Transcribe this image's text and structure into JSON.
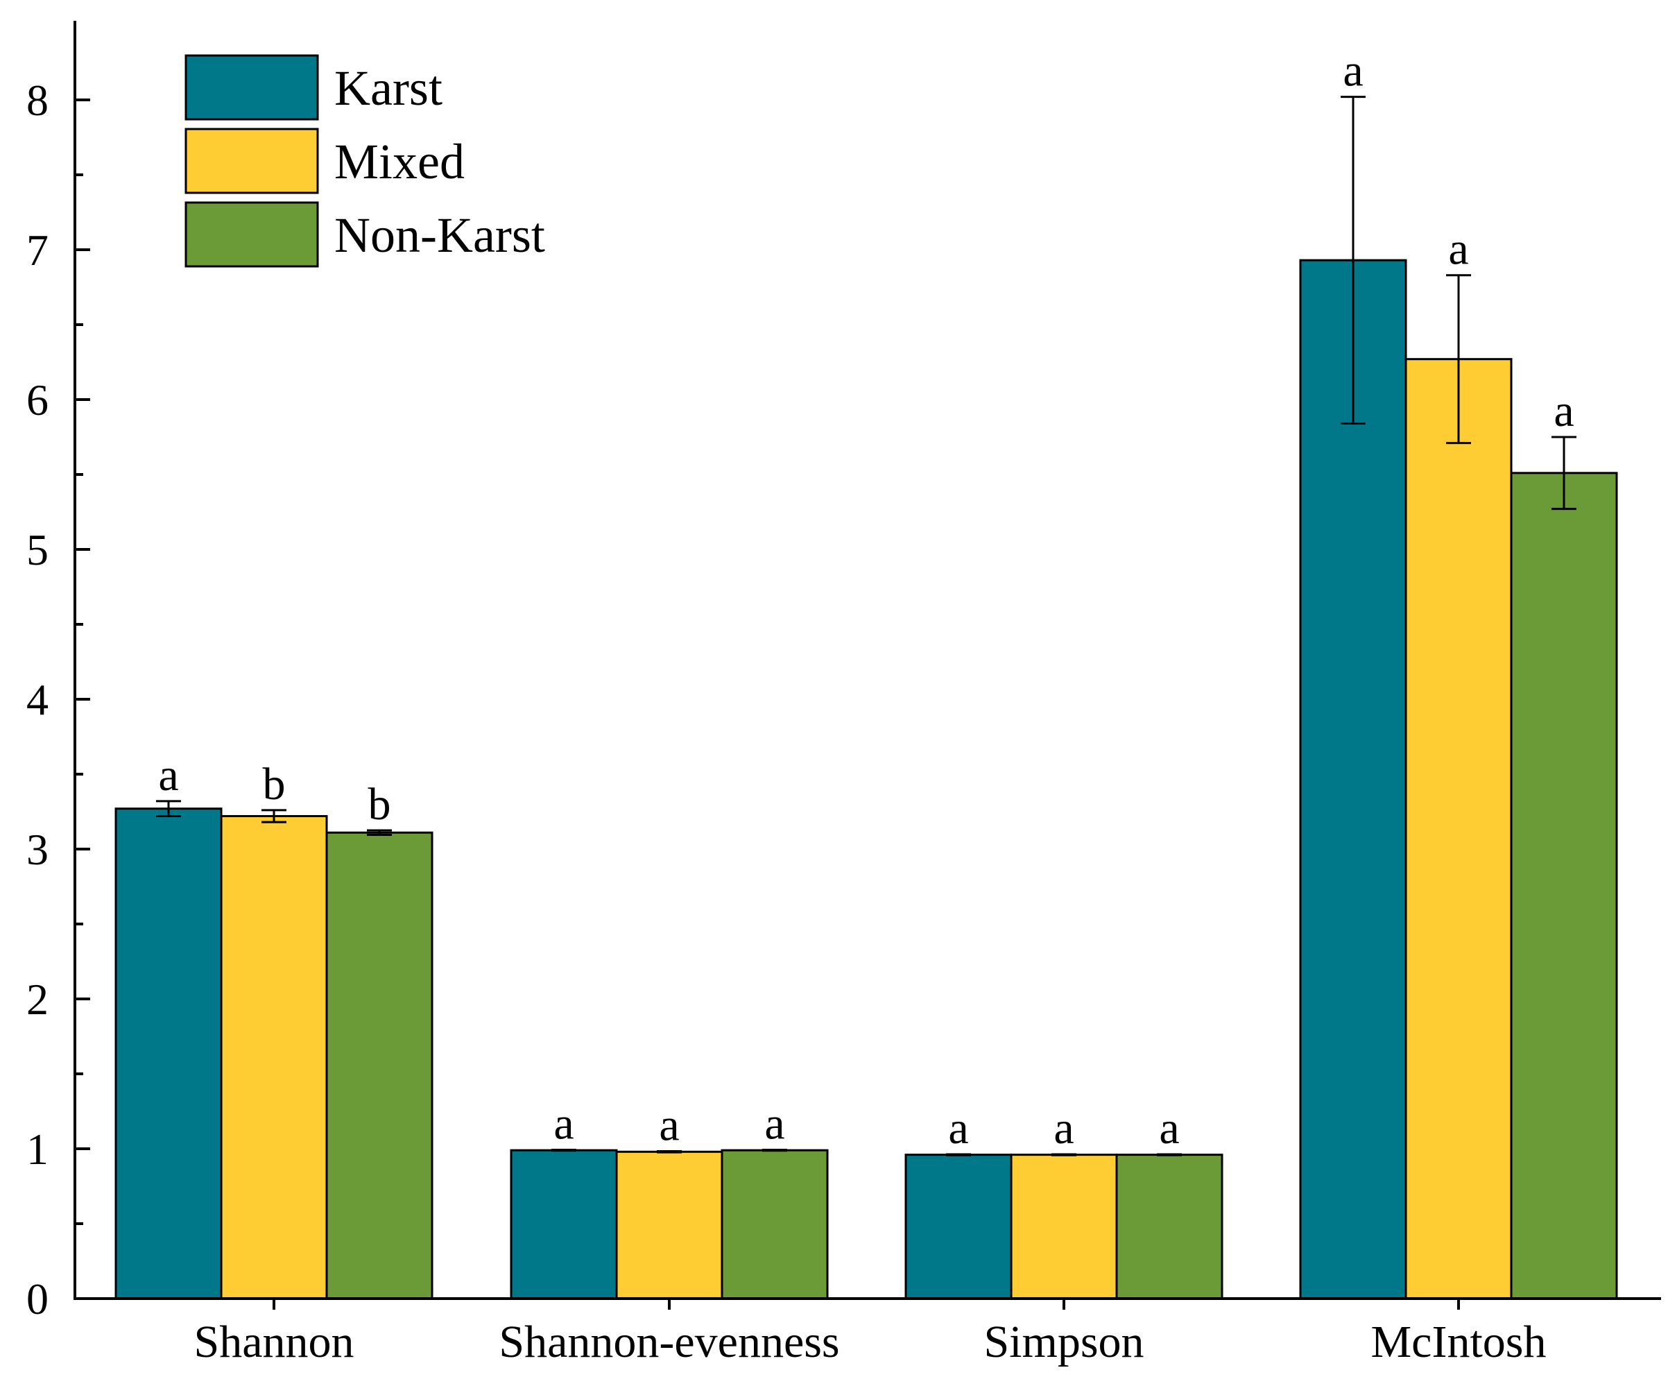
{
  "chart_data": {
    "type": "bar",
    "title": "",
    "xlabel": "",
    "ylabel": "",
    "ylim": [
      0,
      8.5
    ],
    "yticks": [
      0,
      1,
      2,
      3,
      4,
      5,
      6,
      7,
      8
    ],
    "yticklabels": [
      "0",
      "1",
      "2",
      "3",
      "4",
      "5",
      "6",
      "7",
      "8"
    ],
    "categories": [
      "Shannon",
      "Shannon-evenness",
      "Simpson",
      "McIntosh"
    ],
    "legend_position": "top-left",
    "series": [
      {
        "name": "Karst",
        "color": "#00788A",
        "values": [
          3.27,
          0.99,
          0.96,
          6.93
        ],
        "errors": [
          0.05,
          0.003,
          0.003,
          1.09
        ],
        "significance": [
          "a",
          "a",
          "a",
          "a"
        ]
      },
      {
        "name": "Mixed",
        "color": "#FECC33",
        "values": [
          3.22,
          0.98,
          0.96,
          6.27
        ],
        "errors": [
          0.04,
          0.004,
          0.003,
          0.56
        ],
        "significance": [
          "b",
          "a",
          "a",
          "a"
        ]
      },
      {
        "name": "Non-Karst",
        "color": "#6B9B37",
        "values": [
          3.11,
          0.99,
          0.96,
          5.51
        ],
        "errors": [
          0.015,
          0.003,
          0.003,
          0.24
        ],
        "significance": [
          "b",
          "a",
          "a",
          "a"
        ]
      }
    ]
  }
}
